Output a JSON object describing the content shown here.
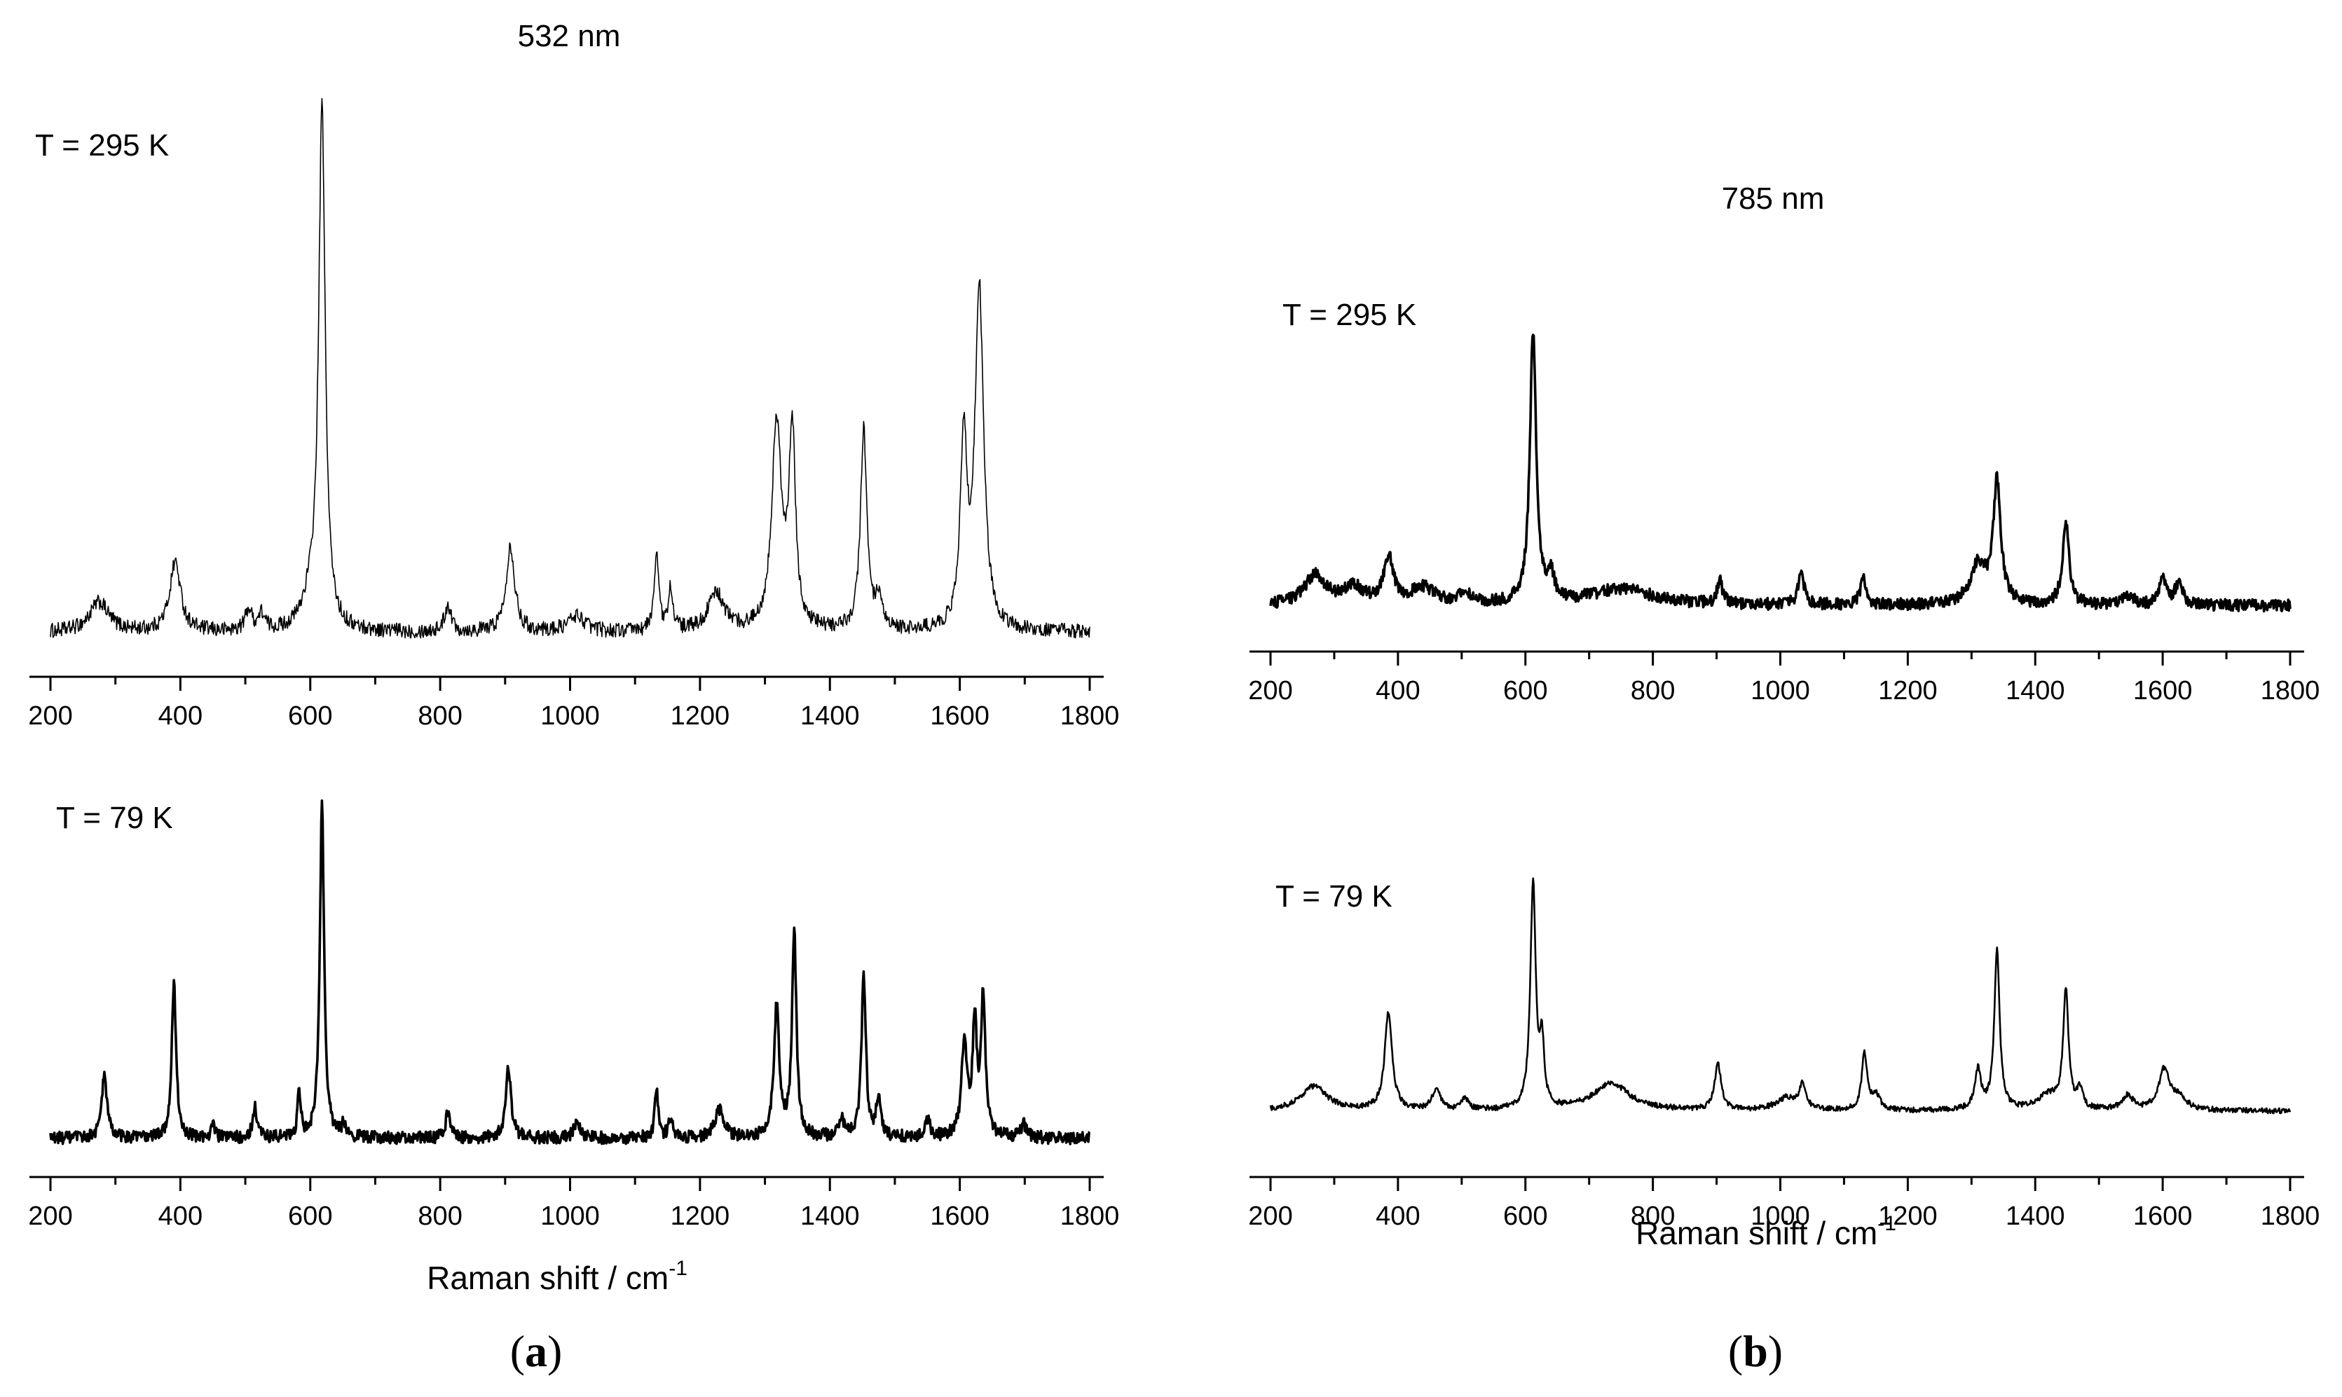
{
  "figure": {
    "panel_a": {
      "letter": "a",
      "paren_open": "(",
      "paren_close": ")",
      "wavelength": "532 nm",
      "xlabel": "Raman shift / cm",
      "xlabel_sup": "-1"
    },
    "panel_b": {
      "letter": "b",
      "paren_open": "(",
      "paren_close": ")",
      "wavelength": "785 nm",
      "xlabel": "Raman shift / cm",
      "xlabel_sup": "-1"
    }
  },
  "chart_data": [
    {
      "id": "a-295",
      "type": "line",
      "title": "532 nm",
      "label": "T = 295 K",
      "xlabel": "Raman shift / cm-1",
      "ylabel": "",
      "xlim": [
        200,
        1800
      ],
      "ylim": [
        0,
        1
      ],
      "xticks": [
        200,
        400,
        600,
        800,
        1000,
        1200,
        1400,
        1600,
        1800
      ],
      "baseline": 0.035,
      "noise": 0.014,
      "line_weight": "thin",
      "peaks": [
        {
          "x": 275,
          "h": 0.055,
          "w": 18
        },
        {
          "x": 392,
          "h": 0.13,
          "w": 10
        },
        {
          "x": 505,
          "h": 0.04,
          "w": 6
        },
        {
          "x": 525,
          "h": 0.03,
          "w": 6
        },
        {
          "x": 600,
          "h": 0.05,
          "w": 15
        },
        {
          "x": 618,
          "h": 0.96,
          "w": 6
        },
        {
          "x": 812,
          "h": 0.05,
          "w": 6
        },
        {
          "x": 908,
          "h": 0.16,
          "w": 8
        },
        {
          "x": 1010,
          "h": 0.03,
          "w": 15
        },
        {
          "x": 1133,
          "h": 0.15,
          "w": 4
        },
        {
          "x": 1155,
          "h": 0.08,
          "w": 4
        },
        {
          "x": 1225,
          "h": 0.07,
          "w": 15
        },
        {
          "x": 1318,
          "h": 0.38,
          "w": 9
        },
        {
          "x": 1342,
          "h": 0.36,
          "w": 6
        },
        {
          "x": 1452,
          "h": 0.37,
          "w": 6
        },
        {
          "x": 1475,
          "h": 0.05,
          "w": 6
        },
        {
          "x": 1606,
          "h": 0.35,
          "w": 6
        },
        {
          "x": 1630,
          "h": 0.63,
          "w": 8
        }
      ]
    },
    {
      "id": "a-79",
      "type": "line",
      "label": "T = 79 K",
      "xlabel": "Raman shift / cm-1",
      "ylabel": "",
      "xlim": [
        200,
        1800
      ],
      "ylim": [
        0,
        1
      ],
      "xticks": [
        200,
        400,
        600,
        800,
        1000,
        1200,
        1400,
        1600,
        1800
      ],
      "baseline": 0.035,
      "noise": 0.018,
      "line_weight": "bold",
      "peaks": [
        {
          "x": 283,
          "h": 0.18,
          "w": 5
        },
        {
          "x": 390,
          "h": 0.45,
          "w": 4
        },
        {
          "x": 450,
          "h": 0.05,
          "w": 3
        },
        {
          "x": 515,
          "h": 0.09,
          "w": 4
        },
        {
          "x": 583,
          "h": 0.13,
          "w": 3
        },
        {
          "x": 618,
          "h": 0.96,
          "w": 4
        },
        {
          "x": 652,
          "h": 0.04,
          "w": 4
        },
        {
          "x": 812,
          "h": 0.08,
          "w": 4
        },
        {
          "x": 905,
          "h": 0.2,
          "w": 5
        },
        {
          "x": 1010,
          "h": 0.05,
          "w": 5
        },
        {
          "x": 1133,
          "h": 0.15,
          "w": 3
        },
        {
          "x": 1155,
          "h": 0.06,
          "w": 4
        },
        {
          "x": 1230,
          "h": 0.08,
          "w": 8
        },
        {
          "x": 1318,
          "h": 0.38,
          "w": 5
        },
        {
          "x": 1345,
          "h": 0.6,
          "w": 4
        },
        {
          "x": 1418,
          "h": 0.05,
          "w": 5
        },
        {
          "x": 1452,
          "h": 0.47,
          "w": 4
        },
        {
          "x": 1475,
          "h": 0.12,
          "w": 4
        },
        {
          "x": 1550,
          "h": 0.05,
          "w": 5
        },
        {
          "x": 1607,
          "h": 0.28,
          "w": 5
        },
        {
          "x": 1623,
          "h": 0.32,
          "w": 4
        },
        {
          "x": 1636,
          "h": 0.4,
          "w": 4
        },
        {
          "x": 1698,
          "h": 0.04,
          "w": 5
        }
      ]
    },
    {
      "id": "b-295",
      "type": "line",
      "title": "785 nm",
      "label": "T = 295 K",
      "xlabel": "Raman shift / cm-1",
      "ylabel": "",
      "xlim": [
        200,
        1800
      ],
      "ylim": [
        0,
        1
      ],
      "xticks": [
        200,
        400,
        600,
        800,
        1000,
        1200,
        1400,
        1600,
        1800
      ],
      "baseline": 0.05,
      "noise": 0.018,
      "line_weight": "bold",
      "peaks": [
        {
          "x": 270,
          "h": 0.09,
          "w": 20
        },
        {
          "x": 330,
          "h": 0.05,
          "w": 20
        },
        {
          "x": 385,
          "h": 0.14,
          "w": 9
        },
        {
          "x": 440,
          "h": 0.05,
          "w": 25
        },
        {
          "x": 505,
          "h": 0.04,
          "w": 8
        },
        {
          "x": 612,
          "h": 0.82,
          "w": 6
        },
        {
          "x": 640,
          "h": 0.08,
          "w": 6
        },
        {
          "x": 750,
          "h": 0.05,
          "w": 60
        },
        {
          "x": 905,
          "h": 0.07,
          "w": 5
        },
        {
          "x": 1033,
          "h": 0.09,
          "w": 6
        },
        {
          "x": 1130,
          "h": 0.09,
          "w": 5
        },
        {
          "x": 1310,
          "h": 0.12,
          "w": 15
        },
        {
          "x": 1340,
          "h": 0.37,
          "w": 7
        },
        {
          "x": 1448,
          "h": 0.26,
          "w": 6
        },
        {
          "x": 1545,
          "h": 0.03,
          "w": 10
        },
        {
          "x": 1600,
          "h": 0.09,
          "w": 6
        },
        {
          "x": 1625,
          "h": 0.06,
          "w": 8
        }
      ]
    },
    {
      "id": "b-79",
      "type": "line",
      "label": "T = 79 K",
      "xlabel": "Raman shift / cm-1",
      "ylabel": "",
      "xlim": [
        200,
        1800
      ],
      "ylim": [
        0,
        1
      ],
      "xticks": [
        200,
        400,
        600,
        800,
        1000,
        1200,
        1400,
        1600,
        1800
      ],
      "baseline": 0.04,
      "noise": 0.011,
      "line_weight": "medium",
      "peaks": [
        {
          "x": 268,
          "h": 0.1,
          "w": 25
        },
        {
          "x": 385,
          "h": 0.4,
          "w": 7
        },
        {
          "x": 460,
          "h": 0.08,
          "w": 8
        },
        {
          "x": 505,
          "h": 0.05,
          "w": 6
        },
        {
          "x": 612,
          "h": 0.92,
          "w": 5
        },
        {
          "x": 626,
          "h": 0.25,
          "w": 4
        },
        {
          "x": 735,
          "h": 0.11,
          "w": 35
        },
        {
          "x": 902,
          "h": 0.19,
          "w": 6
        },
        {
          "x": 1010,
          "h": 0.05,
          "w": 20
        },
        {
          "x": 1035,
          "h": 0.1,
          "w": 6
        },
        {
          "x": 1132,
          "h": 0.23,
          "w": 5
        },
        {
          "x": 1150,
          "h": 0.06,
          "w": 8
        },
        {
          "x": 1310,
          "h": 0.16,
          "w": 6
        },
        {
          "x": 1340,
          "h": 0.65,
          "w": 5
        },
        {
          "x": 1420,
          "h": 0.06,
          "w": 20
        },
        {
          "x": 1448,
          "h": 0.48,
          "w": 5
        },
        {
          "x": 1470,
          "h": 0.08,
          "w": 5
        },
        {
          "x": 1545,
          "h": 0.06,
          "w": 10
        },
        {
          "x": 1602,
          "h": 0.16,
          "w": 10
        },
        {
          "x": 1625,
          "h": 0.05,
          "w": 15
        }
      ]
    }
  ]
}
